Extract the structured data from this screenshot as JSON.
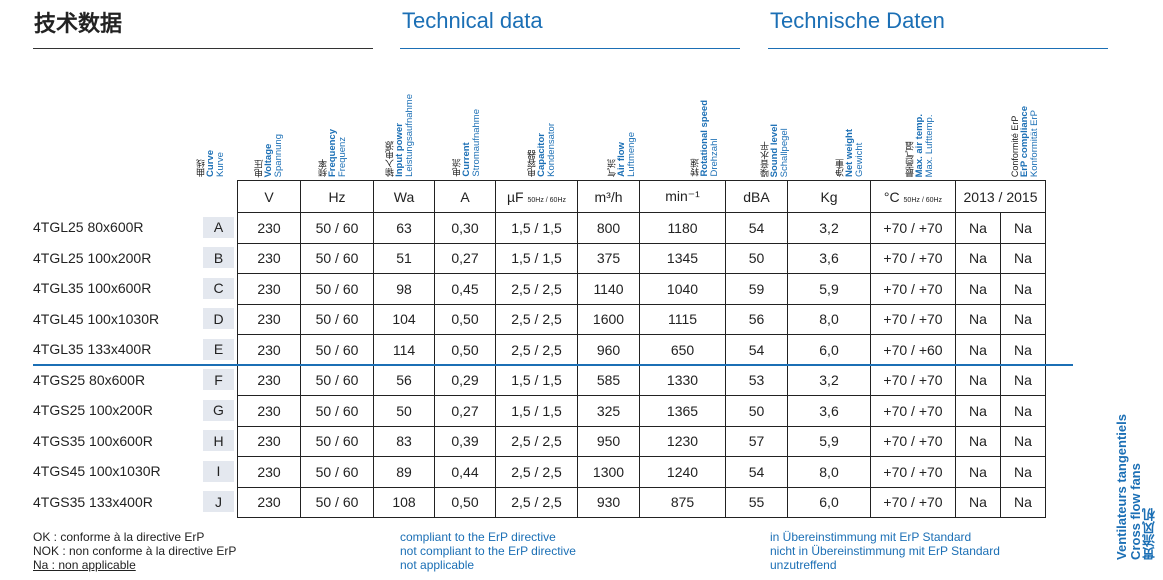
{
  "titles": {
    "cn": "技术数据",
    "en": "Technical data",
    "de": "Technische Daten"
  },
  "column_headers": [
    {
      "cn": "曲线",
      "en": "Curve",
      "de": "Kurve"
    },
    {
      "cn": "电压",
      "en": "Voltage",
      "de": "Spannung"
    },
    {
      "cn": "频率",
      "en": "Frequency",
      "de": "Frequenz"
    },
    {
      "cn": "输入电源",
      "en": "Input power",
      "de": "Leistungsaufnahme"
    },
    {
      "cn": "电流",
      "en": "Current",
      "de": "Stromaufnahme"
    },
    {
      "cn": "电容器",
      "en": "Capacitor",
      "de": "Kondensator"
    },
    {
      "cn": "气流",
      "en": "Air flow",
      "de": "Luftmenge"
    },
    {
      "cn": "转速",
      "en": "Rotational speed",
      "de": "Drehzahl"
    },
    {
      "cn": "噪音水平",
      "en": "Sound level",
      "de": "Schallpegel"
    },
    {
      "cn": "净重",
      "en": "Net weight",
      "de": "Gewicht"
    },
    {
      "cn": "最高气温",
      "en": "Max. air temp.",
      "de": "Max. Lufttemp."
    },
    {
      "cn": "Conformité ErP",
      "en": "ErP compliance",
      "de": "Konformität ErP"
    }
  ],
  "units": {
    "voltage": "V",
    "frequency": "Hz",
    "power": "Wa",
    "current": "A",
    "capacitor": "µF",
    "capacitor_sub": "50Hz / 60Hz",
    "airflow": "m³/h",
    "speed": "min⁻¹",
    "sound": "dBA",
    "weight": "Kg",
    "temp": "°C",
    "temp_sub": "50Hz / 60Hz",
    "erp": "2013 / 2015"
  },
  "rows": [
    {
      "model": "4TGL25 80x600R",
      "curve": "A",
      "v": "230",
      "hz": "50 / 60",
      "wa": "63",
      "a": "0,30",
      "uf": "1,5 / 1,5",
      "m3h": "800",
      "rpm": "1180",
      "dba": "54",
      "kg": "3,2",
      "temp": "+70 / +70",
      "e13": "Na",
      "e15": "Na"
    },
    {
      "model": "4TGL25 100x200R",
      "curve": "B",
      "v": "230",
      "hz": "50 / 60",
      "wa": "51",
      "a": "0,27",
      "uf": "1,5 / 1,5",
      "m3h": "375",
      "rpm": "1345",
      "dba": "50",
      "kg": "3,6",
      "temp": "+70 / +70",
      "e13": "Na",
      "e15": "Na"
    },
    {
      "model": "4TGL35 100x600R",
      "curve": "C",
      "v": "230",
      "hz": "50 / 60",
      "wa": "98",
      "a": "0,45",
      "uf": "2,5 / 2,5",
      "m3h": "1140",
      "rpm": "1040",
      "dba": "59",
      "kg": "5,9",
      "temp": "+70 / +70",
      "e13": "Na",
      "e15": "Na"
    },
    {
      "model": "4TGL45 100x1030R",
      "curve": "D",
      "v": "230",
      "hz": "50 / 60",
      "wa": "104",
      "a": "0,50",
      "uf": "2,5 / 2,5",
      "m3h": "1600",
      "rpm": "1115",
      "dba": "56",
      "kg": "8,0",
      "temp": "+70 / +70",
      "e13": "Na",
      "e15": "Na"
    },
    {
      "model": "4TGL35 133x400R",
      "curve": "E",
      "v": "230",
      "hz": "50 / 60",
      "wa": "114",
      "a": "0,50",
      "uf": "2,5 / 2,5",
      "m3h": "960",
      "rpm": "650",
      "dba": "54",
      "kg": "6,0",
      "temp": "+70 / +60",
      "e13": "Na",
      "e15": "Na"
    },
    {
      "model": "4TGS25 80x600R",
      "curve": "F",
      "v": "230",
      "hz": "50 / 60",
      "wa": "56",
      "a": "0,29",
      "uf": "1,5 / 1,5",
      "m3h": "585",
      "rpm": "1330",
      "dba": "53",
      "kg": "3,2",
      "temp": "+70 / +70",
      "e13": "Na",
      "e15": "Na"
    },
    {
      "model": "4TGS25 100x200R",
      "curve": "G",
      "v": "230",
      "hz": "50 / 60",
      "wa": "50",
      "a": "0,27",
      "uf": "1,5 / 1,5",
      "m3h": "325",
      "rpm": "1365",
      "dba": "50",
      "kg": "3,6",
      "temp": "+70 / +70",
      "e13": "Na",
      "e15": "Na"
    },
    {
      "model": "4TGS35 100x600R",
      "curve": "H",
      "v": "230",
      "hz": "50 / 60",
      "wa": "83",
      "a": "0,39",
      "uf": "2,5 / 2,5",
      "m3h": "950",
      "rpm": "1230",
      "dba": "57",
      "kg": "5,9",
      "temp": "+70 / +70",
      "e13": "Na",
      "e15": "Na"
    },
    {
      "model": "4TGS45 100x1030R",
      "curve": "I",
      "v": "230",
      "hz": "50 / 60",
      "wa": "89",
      "a": "0,44",
      "uf": "2,5 / 2,5",
      "m3h": "1300",
      "rpm": "1240",
      "dba": "54",
      "kg": "8,0",
      "temp": "+70 / +70",
      "e13": "Na",
      "e15": "Na"
    },
    {
      "model": "4TGS35 133x400R",
      "curve": "J",
      "v": "230",
      "hz": "50 / 60",
      "wa": "108",
      "a": "0,50",
      "uf": "2,5 / 2,5",
      "m3h": "930",
      "rpm": "875",
      "dba": "55",
      "kg": "6,0",
      "temp": "+70 / +70",
      "e13": "Na",
      "e15": "Na"
    }
  ],
  "footnotes": {
    "fr": [
      "OK :   conforme à la directive ErP",
      "NOK : non conforme à la directive ErP",
      "Na :    non applicable"
    ],
    "en": [
      "compliant to the ErP directive",
      "not compliant to the ErP directive",
      "not applicable"
    ],
    "de": [
      "in Übereinstimmung mit ErP Standard",
      "nicht in Übereinstimmung mit ErP Standard",
      "unzutreffend"
    ]
  },
  "side_label": {
    "cn": "贯流风机",
    "en": "Cross flow fans",
    "fr": "Ventilateurs tangentiels"
  },
  "colors": {
    "accent": "#1b6fb5",
    "text": "#222222",
    "curve_bg": "#e4e8ef"
  }
}
